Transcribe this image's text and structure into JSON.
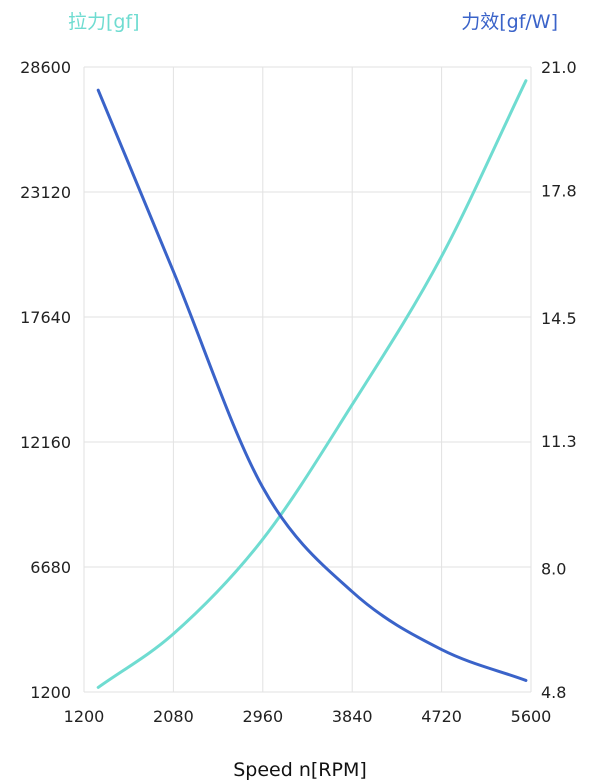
{
  "chart_data": {
    "type": "line",
    "xlabel": "Speed n[RPM]",
    "y_left_label": "拉力[gf]",
    "y_right_label": "力效[gf/W]",
    "xlim": [
      1200,
      5600
    ],
    "x_ticks": [
      "1200",
      "2080",
      "2960",
      "3840",
      "4720",
      "5600"
    ],
    "y_left_lim": [
      1200,
      28600
    ],
    "y_left_ticks": [
      "1200",
      "6680",
      "12160",
      "17640",
      "23120",
      "28600"
    ],
    "y_right_lim": [
      4.8,
      21.0
    ],
    "y_right_ticks": [
      "4.8",
      "8.0",
      "11.3",
      "14.5",
      "17.8",
      "21.0"
    ],
    "grid": true,
    "colors": {
      "thrust": "#6fdcd1",
      "efficiency": "#3a63c9",
      "grid": "#e2e2e2"
    },
    "series": [
      {
        "key": "thrust",
        "axis": "left",
        "x": [
          1340,
          2080,
          2960,
          3840,
          4720,
          5550
        ],
        "values": [
          1400,
          3750,
          7900,
          13800,
          20300,
          28000
        ]
      },
      {
        "key": "efficiency",
        "axis": "right",
        "x": [
          1340,
          2080,
          2960,
          3840,
          4720,
          5550
        ],
        "values": [
          20.4,
          15.7,
          10.1,
          7.4,
          5.9,
          5.1
        ]
      }
    ]
  }
}
